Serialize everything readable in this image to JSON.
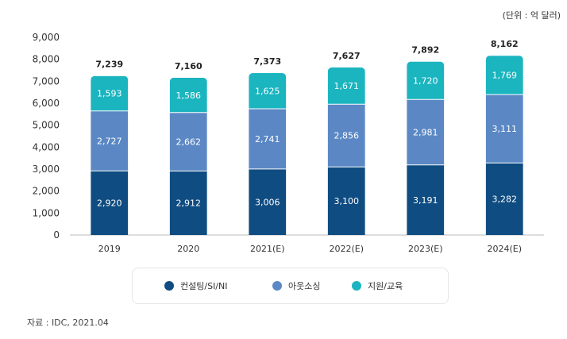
{
  "unit_label": "(단위 : 억 달러)",
  "source": "자료 : IDC, 2021.04",
  "chart_data": {
    "type": "bar",
    "stacked": true,
    "categories": [
      "2019",
      "2020",
      "2021(E)",
      "2022(E)",
      "2023(E)",
      "2024(E)"
    ],
    "series": [
      {
        "name": "컨설팅/SI/NI",
        "color": "#0f4c81",
        "values": [
          2920,
          2912,
          3006,
          3100,
          3191,
          3282
        ]
      },
      {
        "name": "아웃소싱",
        "color": "#5b88c5",
        "values": [
          2727,
          2662,
          2741,
          2856,
          2981,
          3111
        ]
      },
      {
        "name": "지원/교육",
        "color": "#1ab5bf",
        "values": [
          1593,
          1586,
          1625,
          1671,
          1720,
          1769
        ]
      }
    ],
    "totals": [
      7239,
      7160,
      7373,
      7627,
      7892,
      8162
    ],
    "ylim": [
      0,
      9000
    ],
    "yticks": [
      0,
      1000,
      2000,
      3000,
      4000,
      5000,
      6000,
      7000,
      8000,
      9000
    ]
  }
}
